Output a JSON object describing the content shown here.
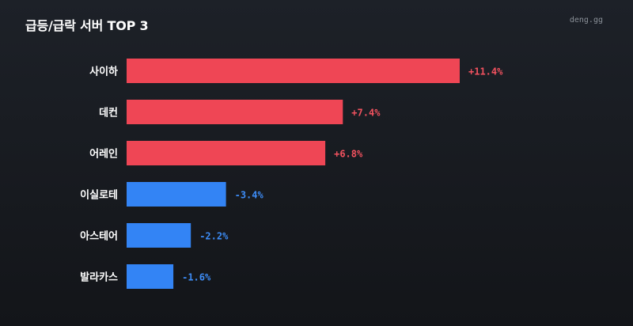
{
  "header": {
    "title": "급등/급락 서버 TOP 3",
    "brand": "deng.gg"
  },
  "colors": {
    "positive": "#ef4655",
    "negative": "#3384f5",
    "positive_text": "#f3525f",
    "negative_text": "#3d8cf6"
  },
  "chart_data": {
    "type": "bar",
    "orientation": "horizontal",
    "categories": [
      "사이하",
      "데컨",
      "어레인",
      "이실로테",
      "아스테어",
      "발라카스"
    ],
    "values": [
      11.4,
      7.4,
      6.8,
      -3.4,
      -2.2,
      -1.6
    ],
    "value_labels": [
      "+11.4%",
      "+7.4%",
      "+6.8%",
      "-3.4%",
      "-2.2%",
      "-1.6%"
    ],
    "title": "급등/급락 서버 TOP 3",
    "xlabel": "",
    "ylabel": "",
    "grid": false,
    "legend": "none"
  }
}
